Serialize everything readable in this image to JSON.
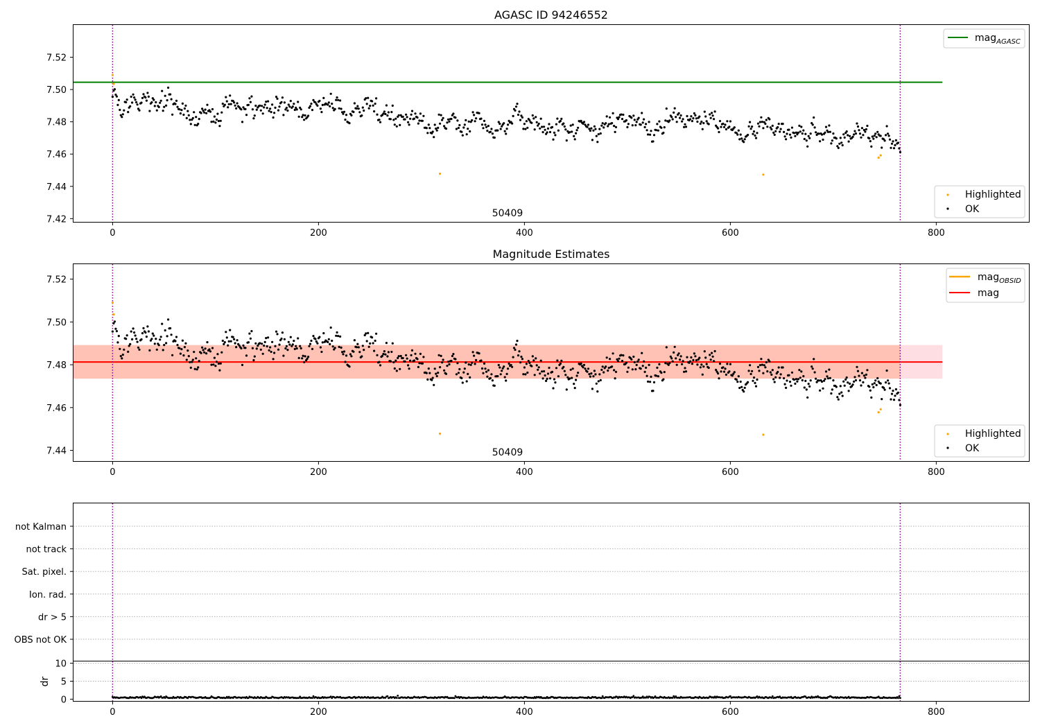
{
  "figure": {
    "series_names": {
      "highlighted": "Highlighted",
      "ok": "OK"
    },
    "colors": {
      "highlighted": "#ffa500",
      "ok": "#000000",
      "agasc_line": "#008000",
      "obsid_line": "#ffa500",
      "mag_line": "#ff0000",
      "obs_boundary": "#800080",
      "band_obsid": "#ffa07a",
      "band_mag": "#ffb6c1",
      "grid": "#b0b0b0"
    },
    "icons": {
      "highlighted_marker": "small-orange-dot",
      "ok_marker": "small-black-dot"
    }
  },
  "chart_data": [
    {
      "type": "scatter",
      "title": "AGASC ID 94246552",
      "xlabel": "",
      "ylabel": "",
      "xlim": [
        -38,
        890
      ],
      "ylim": [
        7.418,
        7.54
      ],
      "xticks": [
        "0",
        "200",
        "400",
        "600",
        "800"
      ],
      "yticks": [
        "7.42",
        "7.44",
        "7.46",
        "7.48",
        "7.50",
        "7.52"
      ],
      "obs_boundaries": [
        0,
        765
      ],
      "obsid_label": "50409",
      "reference_lines": [
        {
          "name": "mag_AGASC",
          "label_main": "mag",
          "label_sub": "AGASC",
          "y": 7.5045,
          "x_range": [
            -38,
            806
          ]
        }
      ],
      "trend": {
        "n": 766,
        "start": 7.4905,
        "end": 7.472,
        "noise": 0.0038,
        "seed": 7
      },
      "highlighted_points": [
        {
          "x": 0,
          "y": 7.509
        },
        {
          "x": 1,
          "y": 7.5035
        },
        {
          "x": 318,
          "y": 7.4478
        },
        {
          "x": 632,
          "y": 7.4473
        },
        {
          "x": 744,
          "y": 7.4578
        },
        {
          "x": 746,
          "y": 7.4592
        }
      ],
      "legend_lines": "upper-right",
      "legend_points": "lower-right"
    },
    {
      "type": "scatter",
      "title": "Magnitude Estimates",
      "xlabel": "",
      "ylabel": "",
      "xlim": [
        -38,
        890
      ],
      "ylim": [
        7.435,
        7.527
      ],
      "xticks": [
        "0",
        "200",
        "400",
        "600",
        "800"
      ],
      "yticks": [
        "7.44",
        "7.46",
        "7.48",
        "7.50",
        "7.52"
      ],
      "obs_boundaries": [
        0,
        765
      ],
      "obsid_label": "50409",
      "reference_lines": [
        {
          "name": "mag_OBSID",
          "label_main": "mag",
          "label_sub": "OBSID",
          "y": 7.4813,
          "x_range": [
            -38,
            765
          ]
        },
        {
          "name": "mag",
          "label_main": "mag",
          "label_sub": "",
          "y": 7.4813,
          "x_range": [
            -38,
            806
          ]
        }
      ],
      "bands": [
        {
          "name": "mag_OBSID_band",
          "y_low": 7.4735,
          "y_high": 7.4892,
          "x_range": [
            -38,
            765
          ]
        },
        {
          "name": "mag_band",
          "y_low": 7.4735,
          "y_high": 7.4892,
          "x_range": [
            -38,
            806
          ]
        }
      ],
      "highlighted_points": [
        {
          "x": 0,
          "y": 7.509
        },
        {
          "x": 1,
          "y": 7.5035
        },
        {
          "x": 318,
          "y": 7.4478
        },
        {
          "x": 632,
          "y": 7.4473
        },
        {
          "x": 744,
          "y": 7.4578
        },
        {
          "x": 746,
          "y": 7.4592
        }
      ],
      "legend_lines": "upper-right",
      "legend_points": "lower-right"
    },
    {
      "type": "scatter",
      "title": "",
      "xlabel": "",
      "ylabel": "",
      "xlim": [
        -38,
        890
      ],
      "obs_boundaries": [
        0,
        765
      ],
      "flag_categories": [
        "not Kalman",
        "not track",
        "Sat. pixel.",
        "Ion. rad.",
        "dr > 5",
        "OBS not OK"
      ],
      "flag_points": []
    },
    {
      "type": "scatter",
      "title": "",
      "xlabel": "",
      "ylabel": "dr",
      "xlim": [
        -38,
        890
      ],
      "ylim": [
        -0.5,
        10.5
      ],
      "xticks": [
        "0",
        "200",
        "400",
        "600",
        "800"
      ],
      "yticks": [
        "0",
        "5",
        "10"
      ],
      "obs_boundaries": [
        0,
        765
      ],
      "dr_trend": {
        "n": 766,
        "base": 0.3,
        "noise": 0.2,
        "seed": 13
      }
    }
  ]
}
